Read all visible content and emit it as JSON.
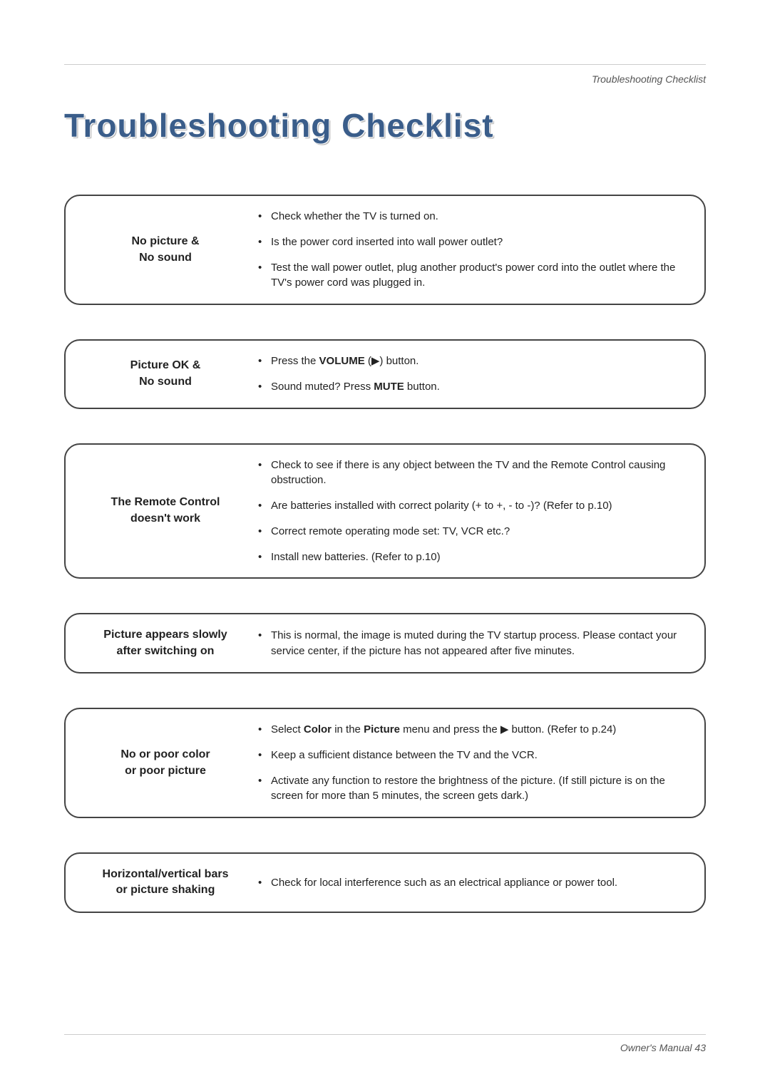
{
  "header_label": "Troubleshooting Checklist",
  "title": "Troubleshooting Checklist",
  "colors": {
    "title_color": "#3a5d8a",
    "box_border": "#444444",
    "body_text": "#222222",
    "line_color": "#cccccc",
    "bg": "#ffffff"
  },
  "typography": {
    "title_fontsize": 46,
    "symptom_fontsize": 16,
    "solution_fontsize": 15,
    "header_fontsize": 14
  },
  "layout": {
    "box_radius": 22,
    "symptom_width": 260
  },
  "issues": [
    {
      "symptom_l1": "No picture &",
      "symptom_l2": "No sound",
      "items": [
        {
          "pre": "Check whether the TV is turned on."
        },
        {
          "pre": "Is the power cord inserted into wall power outlet?"
        },
        {
          "pre": "Test the wall power outlet, plug another product's power cord into the outlet where the TV's power cord was plugged in."
        }
      ]
    },
    {
      "symptom_l1": "Picture OK &",
      "symptom_l2": "No sound",
      "items": [
        {
          "pre": "Press the ",
          "bold1": "VOLUME",
          "mid": " (▶) button."
        },
        {
          "pre": "Sound muted? Press ",
          "bold1": "MUTE",
          "mid": " button."
        }
      ]
    },
    {
      "symptom_l1": "The Remote Control",
      "symptom_l2": "doesn't work",
      "items": [
        {
          "pre": "Check to see if there is any object between the TV and the Remote Control causing obstruction."
        },
        {
          "pre": "Are batteries installed with correct polarity (+ to +, - to -)? (Refer to p.10)"
        },
        {
          "pre": "Correct remote operating mode set: TV, VCR etc.?"
        },
        {
          "pre": "Install new batteries. (Refer to p.10)"
        }
      ]
    },
    {
      "symptom_l1": "Picture appears slowly",
      "symptom_l2": "after switching on",
      "items": [
        {
          "pre": "This is normal, the image is muted during the TV startup process. Please contact your service center, if the picture has not appeared after five minutes."
        }
      ]
    },
    {
      "symptom_l1": "No or poor color",
      "symptom_l2": "or poor picture",
      "items": [
        {
          "pre": "Select ",
          "bold1": "Color",
          "mid": " in the ",
          "bold2": "Picture",
          "post": " menu and press the ▶ button. (Refer to p.24)"
        },
        {
          "pre": "Keep a sufficient distance between the TV and the VCR."
        },
        {
          "pre": "Activate any function to restore the brightness of the picture. (If still picture is on the screen for more than 5 minutes, the screen gets dark.)"
        }
      ]
    },
    {
      "symptom_l1": "Horizontal/vertical bars",
      "symptom_l2": "or picture shaking",
      "items": [
        {
          "pre": "Check for local interference such as an electrical appliance or power tool."
        }
      ]
    }
  ],
  "footer": "Owner's Manual  43",
  "bullet": "•"
}
